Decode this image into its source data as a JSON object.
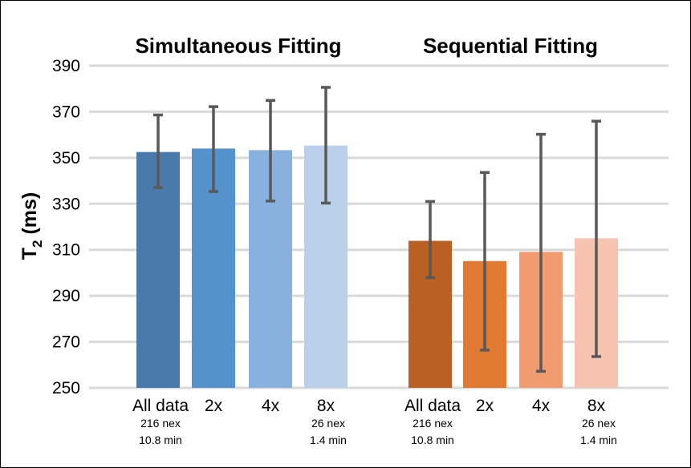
{
  "chart_data": {
    "type": "bar",
    "ylabel_main": "T",
    "ylabel_sub": "2",
    "ylabel_unit": " (ms)",
    "ylim": [
      250,
      390
    ],
    "yticks": [
      250,
      270,
      290,
      310,
      330,
      350,
      370,
      390
    ],
    "grid": true,
    "panels": [
      {
        "title": "Simultaneous Fitting",
        "categories": [
          "All data",
          "2x",
          "4x",
          "8x"
        ],
        "values": [
          352.5,
          354,
          353.3,
          355.3
        ],
        "error_low": [
          337,
          335.3,
          331.2,
          330.3
        ],
        "error_high": [
          368.6,
          372.2,
          374.9,
          380.6
        ],
        "colors": [
          "#4a7aab",
          "#5592cc",
          "#89b1df",
          "#b9cfea"
        ],
        "annotations": [
          {
            "category_index": 0,
            "lines": [
              "216 nex",
              "10.8 min"
            ]
          },
          {
            "category_index": 3,
            "lines": [
              "26 nex",
              "1.4 min"
            ]
          }
        ]
      },
      {
        "title": "Sequential Fitting",
        "categories": [
          "All data",
          "2x",
          "4x",
          "8x"
        ],
        "values": [
          313.9,
          305.1,
          309.1,
          315
        ],
        "error_low": [
          297.9,
          266.4,
          257.2,
          263.6
        ],
        "error_high": [
          331,
          343.6,
          360.2,
          365.9
        ],
        "colors": [
          "#bb6025",
          "#e07a32",
          "#f19b70",
          "#f6c3b0"
        ],
        "annotations": [
          {
            "category_index": 0,
            "lines": [
              "216 nex",
              "10.8 min"
            ]
          },
          {
            "category_index": 3,
            "lines": [
              "26 nex",
              "1.4 min"
            ]
          }
        ]
      }
    ],
    "grid_color": "#d9d9d9",
    "error_bar_color": "#595959"
  }
}
